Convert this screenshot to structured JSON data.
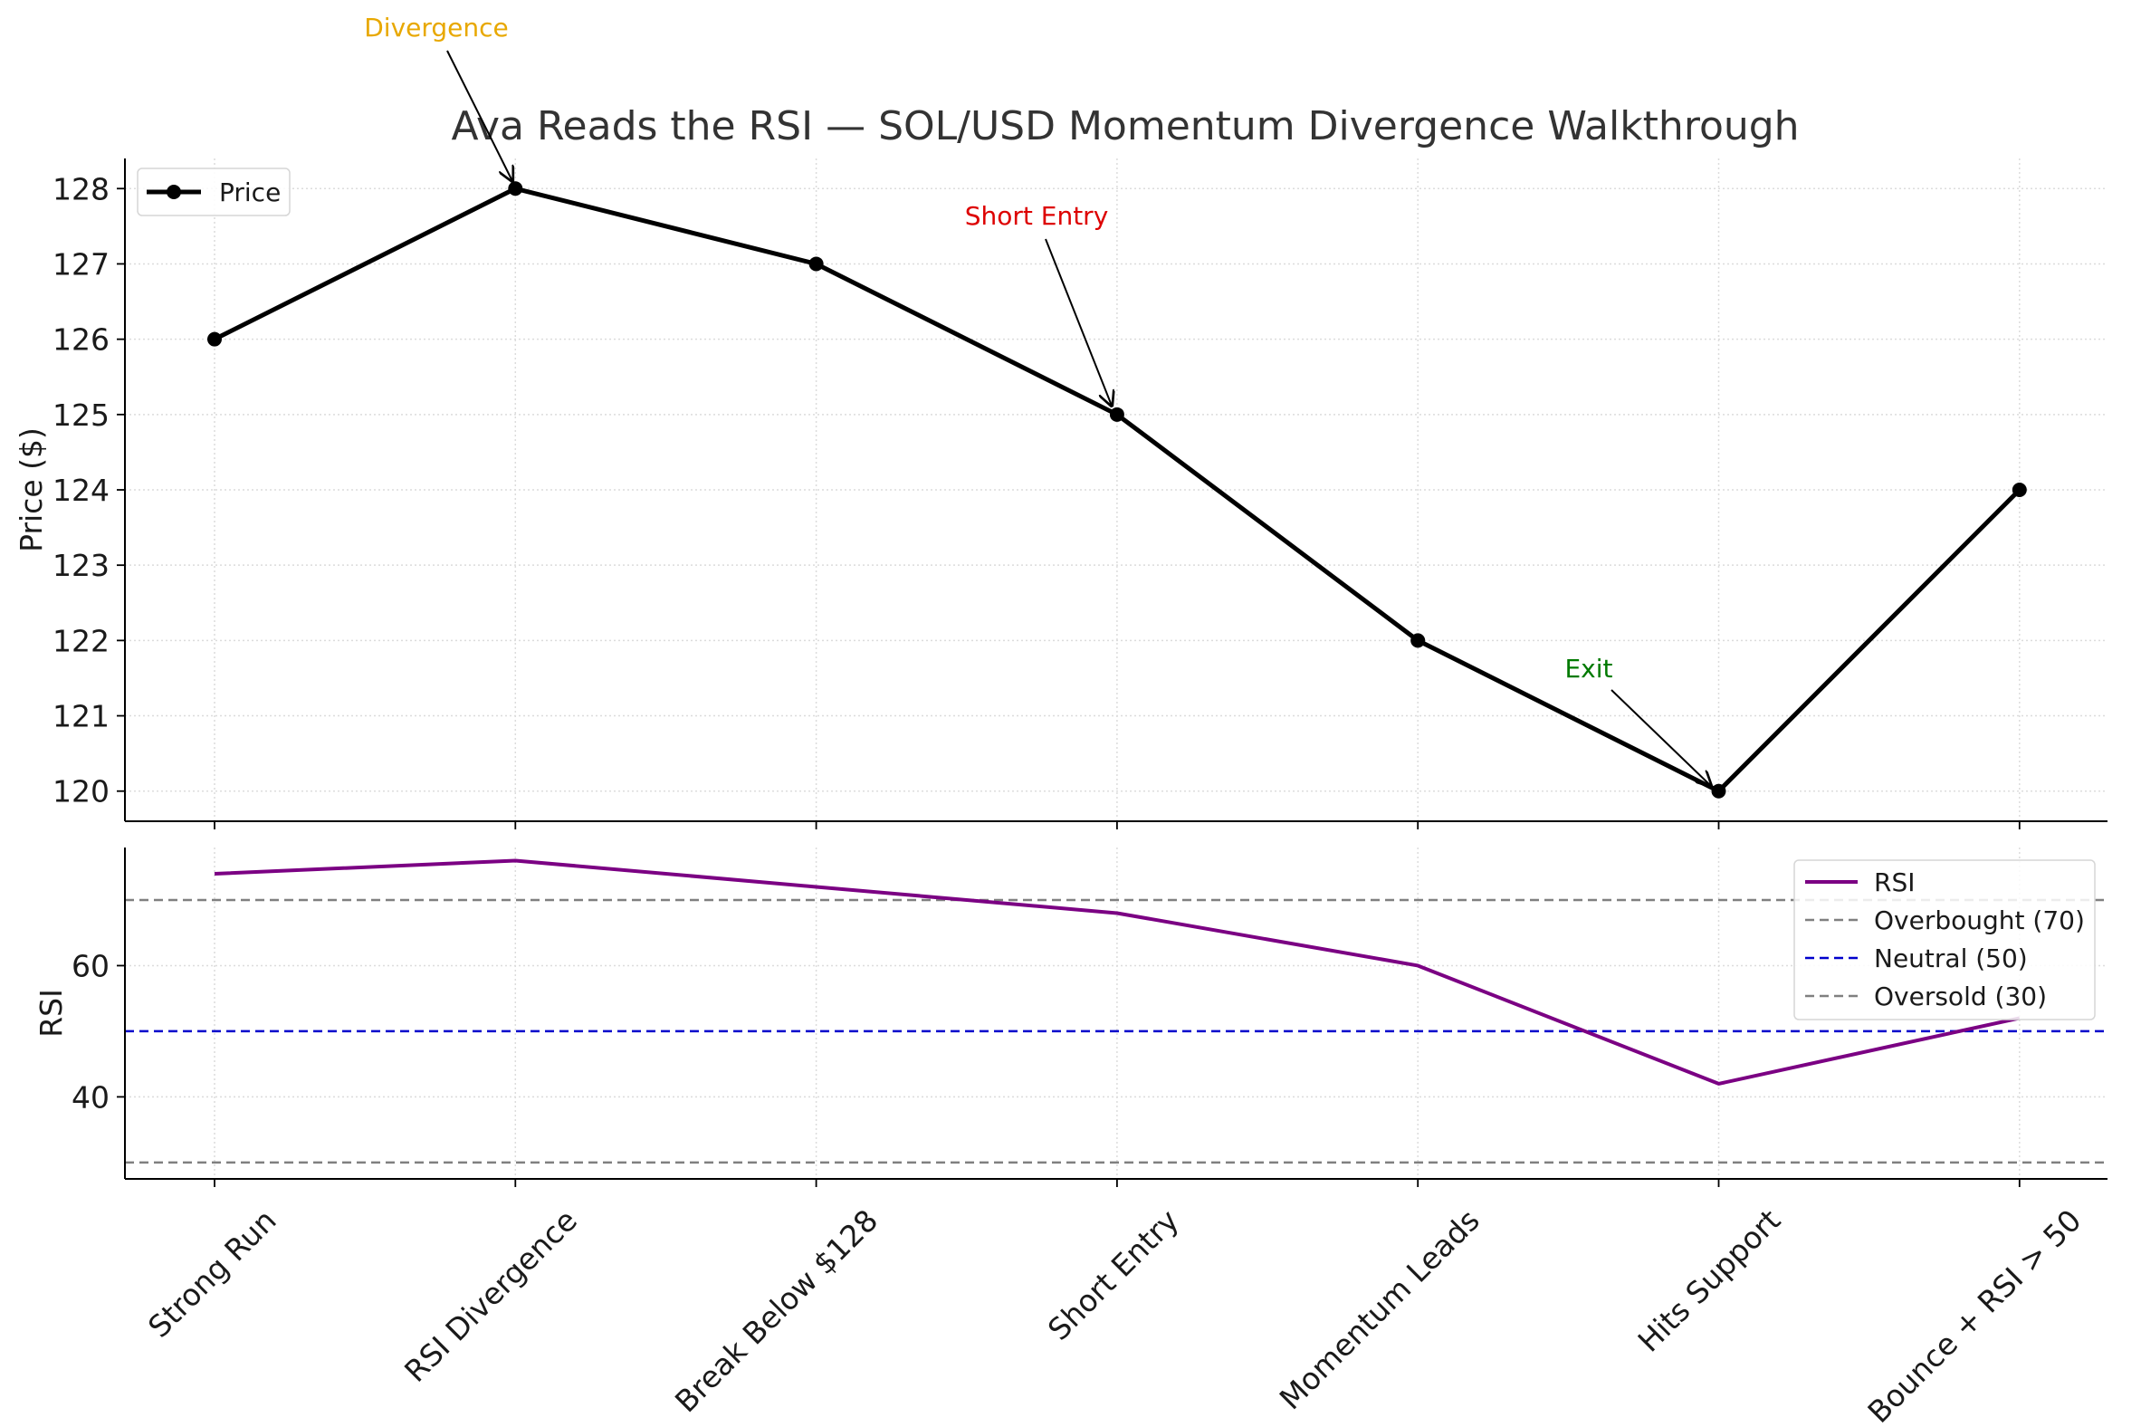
{
  "chart_data": [
    {
      "type": "line",
      "title": "Ava Reads the RSI — SOL/USD Momentum Divergence Walkthrough",
      "ylabel": "Price ($)",
      "xlabel": "",
      "categories": [
        "Strong Run",
        "RSI Divergence",
        "Break Below $128",
        "Short Entry",
        "Momentum Leads",
        "Hits Support",
        "Bounce + RSI > 50"
      ],
      "ylim": [
        119.6,
        128.4
      ],
      "yticks": [
        "120",
        "121",
        "122",
        "123",
        "124",
        "125",
        "126",
        "127",
        "128"
      ],
      "grid": true,
      "legend": "top-left",
      "series": [
        {
          "name": "Price",
          "values": [
            126,
            128,
            127,
            125,
            122,
            120,
            124
          ],
          "color": "#000000",
          "markers": true
        }
      ],
      "annotations": [
        {
          "text": "Divergence",
          "target_index": 1,
          "color": "#e8a800"
        },
        {
          "text": "Short Entry",
          "target_index": 3,
          "color": "#dd0000"
        },
        {
          "text": "Exit",
          "target_index": 5,
          "color": "#007a00"
        }
      ]
    },
    {
      "type": "line",
      "ylabel": "RSI",
      "categories": [
        "Strong Run",
        "RSI Divergence",
        "Break Below $128",
        "Short Entry",
        "Momentum Leads",
        "Hits Support",
        "Bounce + RSI > 50"
      ],
      "ylim": [
        27.5,
        78
      ],
      "yticks": [
        "40",
        "60"
      ],
      "grid": true,
      "legend": "top-right",
      "series": [
        {
          "name": "RSI",
          "values": [
            74,
            76,
            72,
            68,
            60,
            42,
            52
          ],
          "color": "#7b0083"
        }
      ],
      "reference_lines": [
        {
          "name": "Overbought (70)",
          "value": 70,
          "color": "#808080"
        },
        {
          "name": "Neutral (50)",
          "value": 50,
          "color": "#0000cc"
        },
        {
          "name": "Oversold (30)",
          "value": 30,
          "color": "#808080"
        }
      ]
    }
  ]
}
